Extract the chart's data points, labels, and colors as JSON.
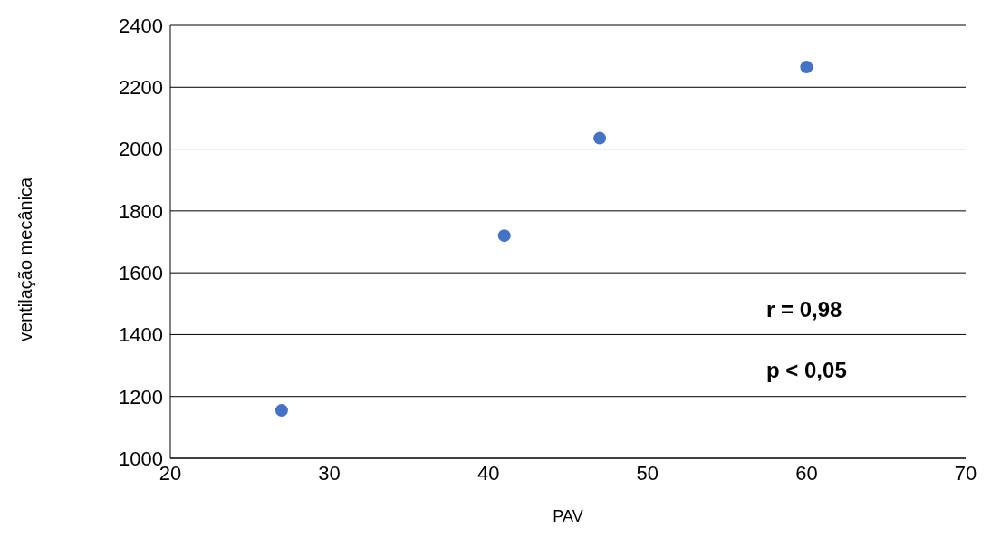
{
  "chart_data": {
    "type": "scatter",
    "xlabel": "PAV",
    "ylabel": "ventilação mecânica",
    "x": [
      27,
      41,
      47,
      60
    ],
    "series": [
      {
        "color": "#4472c4",
        "values": [
          1155,
          1720,
          2035,
          2265
        ]
      }
    ],
    "xlim": [
      20,
      70
    ],
    "xticks": [
      20,
      30,
      40,
      50,
      60,
      70
    ],
    "ylim": [
      1000,
      2400
    ],
    "yticks": [
      1000,
      1200,
      1400,
      1600,
      1800,
      2000,
      2200,
      2400
    ],
    "grid": "y",
    "legend": false,
    "marker": "circle",
    "annotations": [
      "r = 0,98",
      "p < 0,05"
    ]
  }
}
